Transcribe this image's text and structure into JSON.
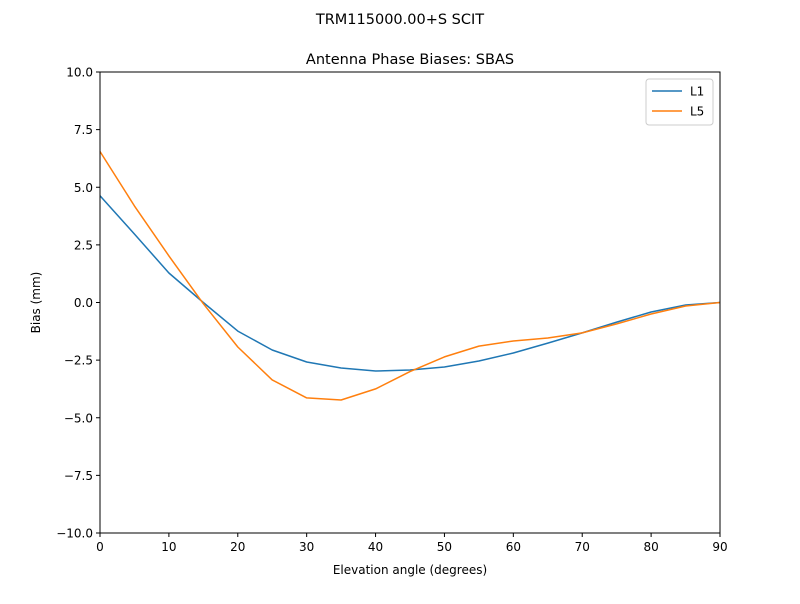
{
  "chart_data": {
    "type": "line",
    "suptitle": "TRM115000.00+S  SCIT",
    "title": "Antenna Phase Biases: SBAS",
    "xlabel": "Elevation angle (degrees)",
    "ylabel": "Bias (mm)",
    "xlim": [
      0,
      90
    ],
    "ylim": [
      -10,
      10
    ],
    "xticks": [
      0,
      10,
      20,
      30,
      40,
      50,
      60,
      70,
      80,
      90
    ],
    "xtick_labels": [
      "0",
      "10",
      "20",
      "30",
      "40",
      "50",
      "60",
      "70",
      "80",
      "90"
    ],
    "yticks": [
      -10,
      -7.5,
      -5,
      -2.5,
      0,
      2.5,
      5,
      7.5,
      10
    ],
    "ytick_labels": [
      "−10.0",
      "−7.5",
      "−5.0",
      "−2.5",
      "0.0",
      "2.5",
      "5.0",
      "7.5",
      "10.0"
    ],
    "grid": false,
    "legend_position": "top-right",
    "x": [
      0,
      5,
      10,
      15,
      20,
      25,
      30,
      35,
      40,
      45,
      50,
      55,
      60,
      65,
      70,
      75,
      80,
      85,
      90
    ],
    "series": [
      {
        "name": "L1",
        "color": "#1f77b4",
        "values": [
          4.63,
          2.97,
          1.28,
          0.0,
          -1.24,
          -2.06,
          -2.58,
          -2.84,
          -2.97,
          -2.93,
          -2.8,
          -2.54,
          -2.19,
          -1.76,
          -1.32,
          -0.85,
          -0.41,
          -0.11,
          0.0
        ]
      },
      {
        "name": "L5",
        "color": "#ff7f0e",
        "values": [
          6.55,
          4.19,
          2.02,
          -0.05,
          -1.93,
          -3.36,
          -4.14,
          -4.23,
          -3.75,
          -3.0,
          -2.36,
          -1.89,
          -1.67,
          -1.54,
          -1.32,
          -0.93,
          -0.5,
          -0.15,
          0.0
        ]
      }
    ]
  }
}
